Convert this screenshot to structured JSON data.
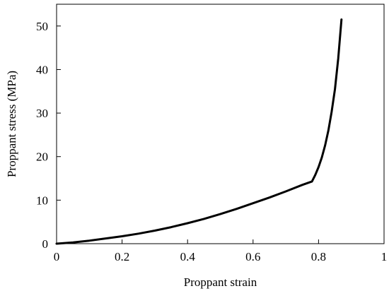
{
  "chart_data": {
    "type": "line",
    "title": "",
    "xlabel": "Proppant strain",
    "ylabel": "Proppant stress (MPa)",
    "xlim": [
      0,
      1
    ],
    "ylim": [
      0,
      55
    ],
    "xticks": [
      0,
      0.2,
      0.4,
      0.6,
      0.8,
      1
    ],
    "yticks": [
      0,
      10,
      20,
      30,
      40,
      50
    ],
    "xtick_labels": [
      "0",
      "0.2",
      "0.4",
      "0.6",
      "0.8",
      "1"
    ],
    "ytick_labels": [
      "0",
      "10",
      "20",
      "30",
      "40",
      "50"
    ],
    "grid": false,
    "legend": "none",
    "line_color": "#000000",
    "series": [
      {
        "x": [
          0,
          0.05,
          0.1,
          0.15,
          0.2,
          0.25,
          0.3,
          0.35,
          0.4,
          0.45,
          0.5,
          0.55,
          0.6,
          0.65,
          0.7,
          0.75,
          0.78,
          0.79,
          0.8,
          0.81,
          0.82,
          0.83,
          0.84,
          0.85,
          0.86,
          0.87
        ],
        "y": [
          0,
          0.3,
          0.7,
          1.2,
          1.7,
          2.3,
          3.0,
          3.8,
          4.7,
          5.7,
          6.8,
          8.0,
          9.3,
          10.6,
          12.0,
          13.5,
          14.3,
          15.8,
          17.6,
          19.8,
          22.6,
          26.0,
          30.3,
          35.5,
          42.5,
          51.5
        ]
      }
    ]
  }
}
